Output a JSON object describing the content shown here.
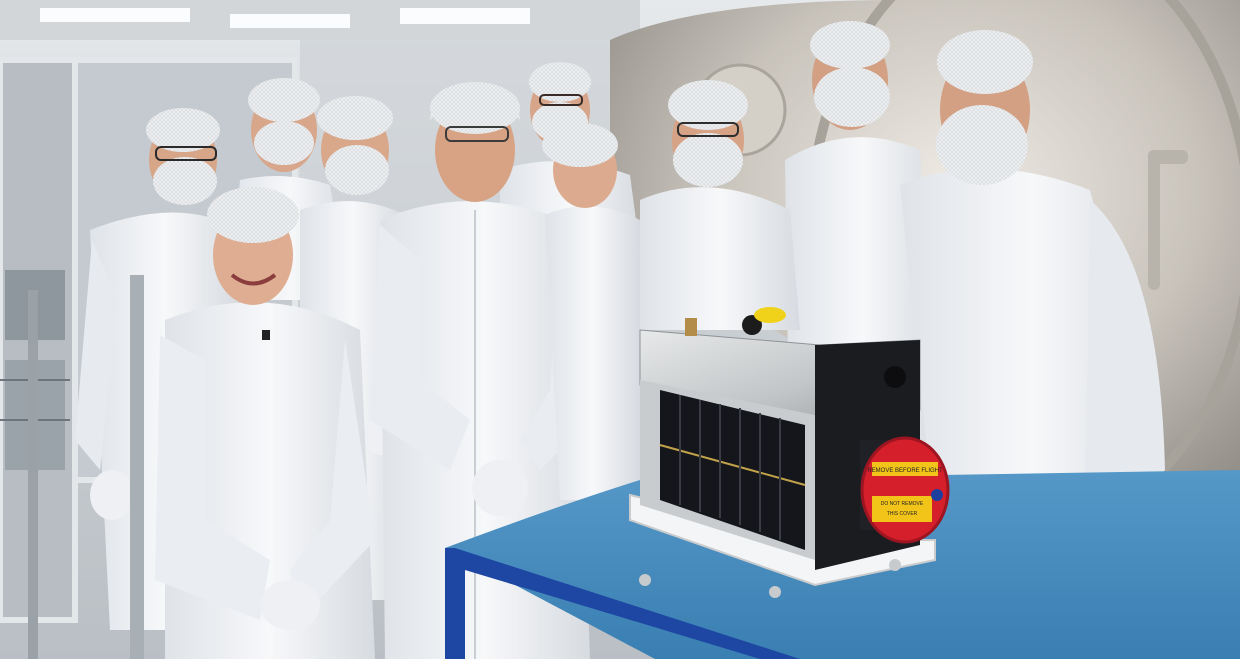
{
  "photo": {
    "subject": "cleanroom team with cubesat",
    "cover_label_line1": "REMOVE BEFORE FLIGHT",
    "cover_label_line2": "DO NOT REMOVE",
    "cover_label_line3": "THIS COVER",
    "colors": {
      "cleanroom_bg": "#d6dade",
      "chamber_metal": "#c9c4bc",
      "gown_white": "#f3f4f6",
      "gown_shadow": "#d9dde2",
      "net_white": "#eef0f2",
      "skin": "#d9a98e",
      "table_blue": "#3f86b9",
      "table_frame": "#1d47a3",
      "satellite_metal": "#cfd2d4",
      "solar_black": "#16171c",
      "cover_red": "#d51f2b",
      "label_yellow": "#f2c419"
    }
  }
}
